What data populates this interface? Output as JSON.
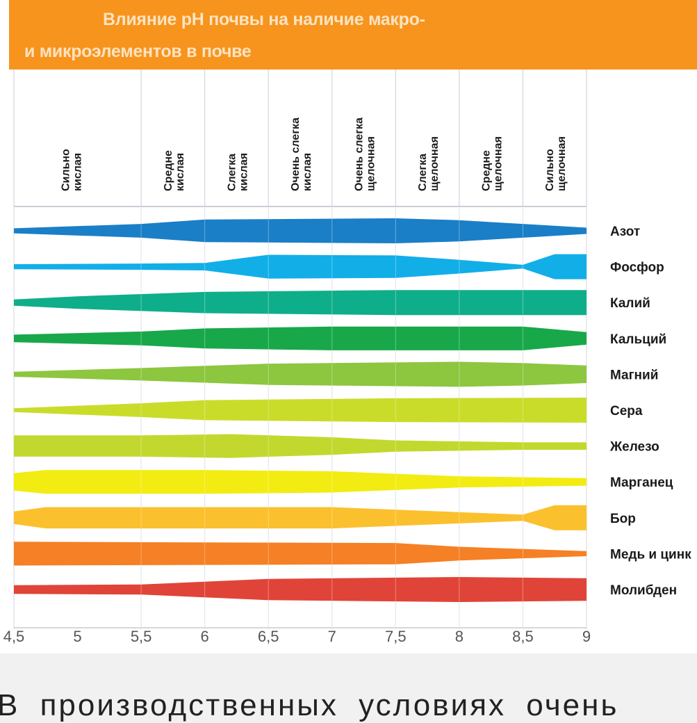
{
  "chart_data": {
    "type": "area",
    "title_line1": "Влияние pH почвы на наличие макро-",
    "title_line2": "и  микроэлементов в почве",
    "xlabel": "",
    "xlim": [
      4.5,
      9
    ],
    "x_ticks": [
      "4,5",
      "5",
      "5,5",
      "6",
      "6,5",
      "7",
      "7,5",
      "8",
      "8,5",
      "9"
    ],
    "x_tick_values": [
      4.5,
      5,
      5.5,
      6,
      6.5,
      7,
      7.5,
      8,
      8.5,
      9
    ],
    "categories": [
      {
        "from": 4.5,
        "to": 5.5,
        "line1": "Сильно",
        "line2": "кислая"
      },
      {
        "from": 5.5,
        "to": 6,
        "line1": "Средне",
        "line2": "кислая"
      },
      {
        "from": 6,
        "to": 6.5,
        "line1": "Слегка",
        "line2": "кислая"
      },
      {
        "from": 6.5,
        "to": 7,
        "line1": "Очень слегка",
        "line2": "кислая"
      },
      {
        "from": 7,
        "to": 7.5,
        "line1": "Очень слегка",
        "line2": "щелочная"
      },
      {
        "from": 7.5,
        "to": 8,
        "line1": "Слегка",
        "line2": "щелочная"
      },
      {
        "from": 8,
        "to": 8.5,
        "line1": "Средне",
        "line2": "щелочная"
      },
      {
        "from": 8.5,
        "to": 9,
        "line1": "Сильно",
        "line2": "щелочная"
      }
    ],
    "value_meaning": "relative availability (band thickness), 0-1",
    "series": [
      {
        "name": "Азот",
        "color": "#1a7fc7",
        "points": [
          [
            4.5,
            0.2
          ],
          [
            5.5,
            0.55
          ],
          [
            6,
            0.9
          ],
          [
            7.5,
            1
          ],
          [
            8,
            0.85
          ],
          [
            8.5,
            0.55
          ],
          [
            9,
            0.25
          ]
        ]
      },
      {
        "name": "Фосфор",
        "color": "#12aee8",
        "points": [
          [
            4.5,
            0.2
          ],
          [
            5.5,
            0.25
          ],
          [
            6,
            0.3
          ],
          [
            6.5,
            0.95
          ],
          [
            7.5,
            0.9
          ],
          [
            8,
            0.55
          ],
          [
            8.5,
            0.15
          ],
          [
            8.75,
            1
          ],
          [
            9,
            1
          ]
        ]
      },
      {
        "name": "Калий",
        "color": "#0fae8a",
        "points": [
          [
            4.5,
            0.25
          ],
          [
            5,
            0.5
          ],
          [
            6,
            0.85
          ],
          [
            7.5,
            1
          ],
          [
            9,
            1
          ]
        ]
      },
      {
        "name": "Кальций",
        "color": "#18a84a",
        "points": [
          [
            4.5,
            0.3
          ],
          [
            5.5,
            0.55
          ],
          [
            6,
            0.8
          ],
          [
            7,
            0.95
          ],
          [
            8.5,
            0.95
          ],
          [
            9,
            0.5
          ]
        ]
      },
      {
        "name": "Магний",
        "color": "#8dc63f",
        "points": [
          [
            4.5,
            0.2
          ],
          [
            5.5,
            0.5
          ],
          [
            6.5,
            0.85
          ],
          [
            8,
            1
          ],
          [
            8.5,
            0.9
          ],
          [
            9,
            0.7
          ]
        ]
      },
      {
        "name": "Сера",
        "color": "#c9dc2a",
        "points": [
          [
            4.5,
            0.15
          ],
          [
            5.5,
            0.55
          ],
          [
            6,
            0.8
          ],
          [
            7.5,
            0.95
          ],
          [
            9,
            1
          ]
        ]
      },
      {
        "name": "Железо",
        "color": "#c3d82e",
        "points": [
          [
            4.5,
            0.85
          ],
          [
            5.5,
            0.85
          ],
          [
            6.2,
            0.95
          ],
          [
            7,
            0.7
          ],
          [
            7.5,
            0.45
          ],
          [
            8.5,
            0.3
          ],
          [
            9,
            0.3
          ]
        ]
      },
      {
        "name": "Марганец",
        "color": "#f2ec12",
        "points": [
          [
            4.5,
            0.7
          ],
          [
            4.75,
            0.95
          ],
          [
            6,
            0.95
          ],
          [
            7,
            0.85
          ],
          [
            8,
            0.45
          ],
          [
            9,
            0.3
          ]
        ]
      },
      {
        "name": "Бор",
        "color": "#fbc02d",
        "points": [
          [
            4.5,
            0.5
          ],
          [
            4.75,
            0.85
          ],
          [
            7,
            0.85
          ],
          [
            8,
            0.45
          ],
          [
            8.5,
            0.25
          ],
          [
            8.75,
            1
          ],
          [
            9,
            1
          ]
        ]
      },
      {
        "name": "Медь и цинк",
        "color": "#f58025",
        "points": [
          [
            4.5,
            0.95
          ],
          [
            7.5,
            0.85
          ],
          [
            8,
            0.55
          ],
          [
            9,
            0.2
          ]
        ]
      },
      {
        "name": "Молибден",
        "color": "#e04438",
        "points": [
          [
            4.5,
            0.35
          ],
          [
            5.5,
            0.4
          ],
          [
            6.5,
            0.85
          ],
          [
            8,
            1
          ],
          [
            9,
            0.9
          ]
        ]
      }
    ]
  },
  "footer_text": "В производственных условиях очень"
}
